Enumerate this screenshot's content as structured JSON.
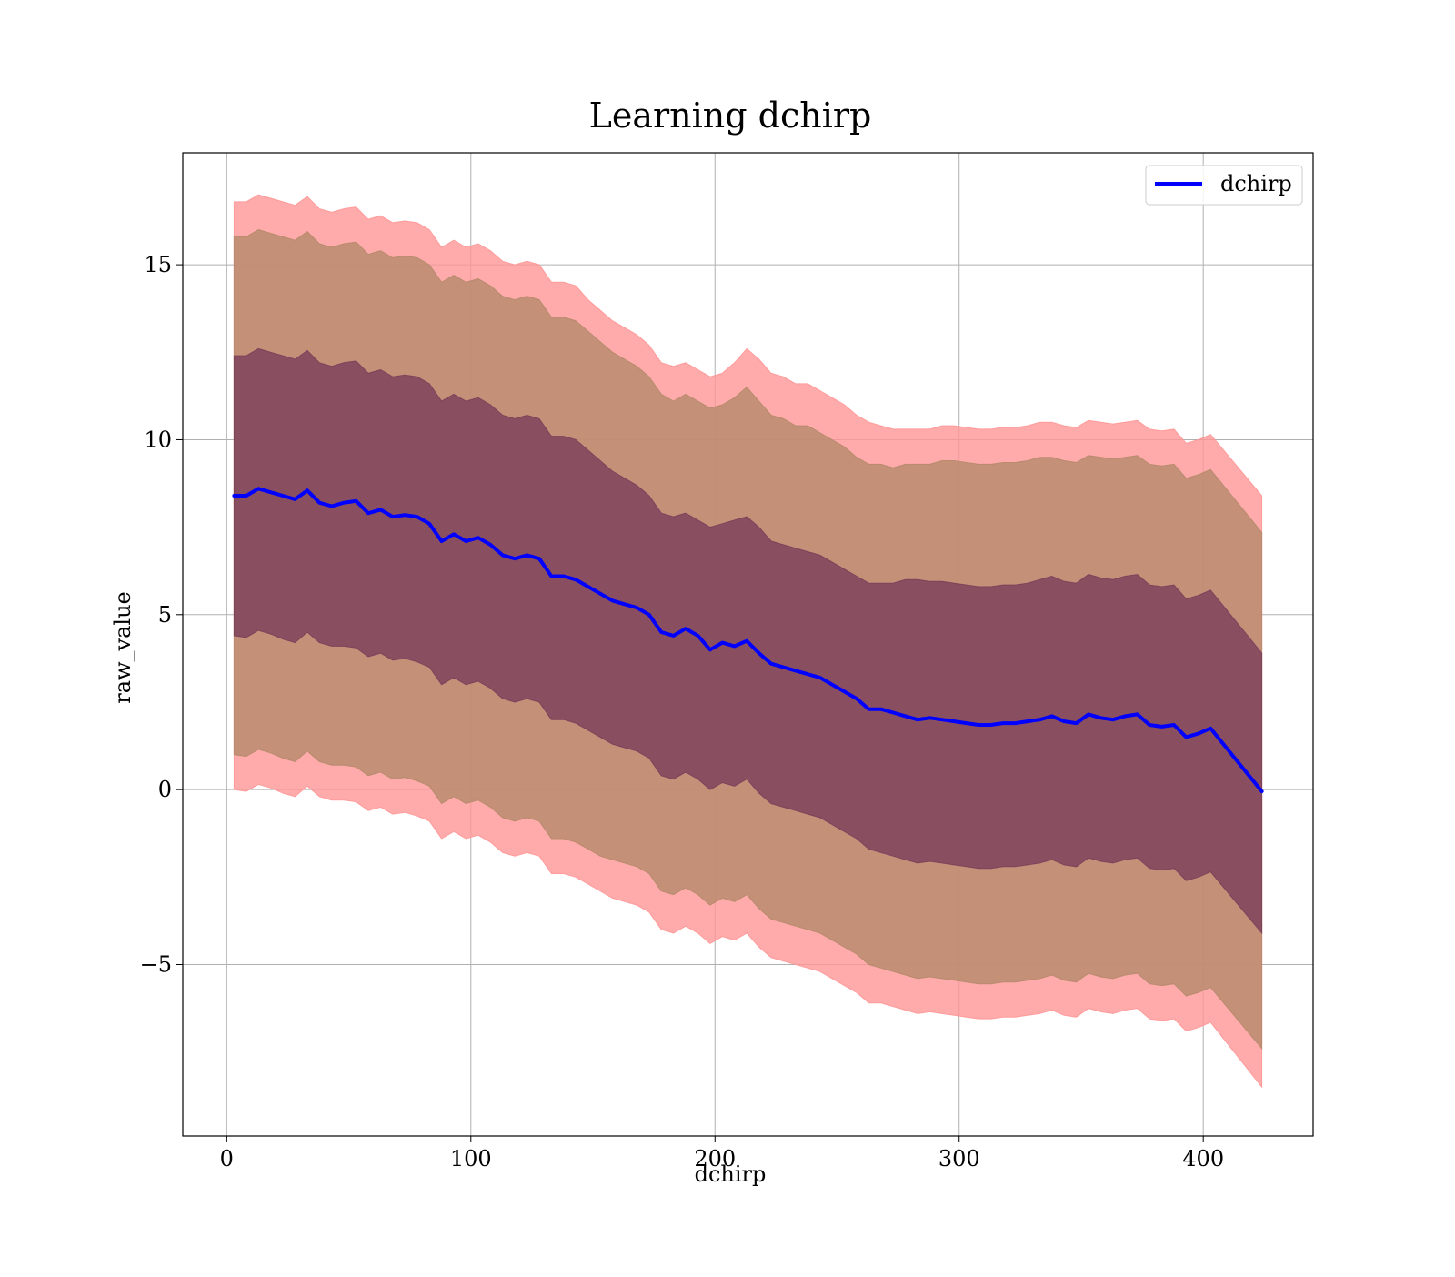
{
  "chart_data": {
    "type": "line",
    "title": "Learning dchirp",
    "xlabel": "dchirp",
    "ylabel": "raw_value",
    "xlim": [
      -18,
      445
    ],
    "ylim": [
      -9.9,
      18.2
    ],
    "xticks": [
      0,
      100,
      200,
      300,
      400
    ],
    "yticks": [
      -5,
      0,
      5,
      10,
      15
    ],
    "grid": true,
    "legend_position": "top-right",
    "colors": {
      "mean_line": "#0000ff",
      "band_outer": "#ff9696",
      "band_middle": "#b58a6a",
      "band_inner": "#7a3f5a",
      "grid": "#b0b0b0"
    },
    "series": [
      {
        "name": "dchirp",
        "style": "line",
        "x": [
          3,
          8,
          13,
          18,
          23,
          28,
          33,
          38,
          43,
          48,
          53,
          58,
          63,
          68,
          73,
          78,
          83,
          88,
          93,
          98,
          103,
          108,
          113,
          118,
          123,
          128,
          133,
          138,
          143,
          148,
          153,
          158,
          163,
          168,
          173,
          178,
          183,
          188,
          193,
          198,
          203,
          208,
          213,
          218,
          223,
          228,
          233,
          238,
          243,
          248,
          253,
          258,
          263,
          268,
          273,
          278,
          283,
          288,
          293,
          298,
          303,
          308,
          313,
          318,
          323,
          328,
          333,
          338,
          343,
          348,
          353,
          358,
          363,
          368,
          373,
          378,
          383,
          388,
          393,
          398,
          403,
          424
        ],
        "y": [
          8.4,
          8.4,
          8.6,
          8.5,
          8.4,
          8.3,
          8.55,
          8.2,
          8.1,
          8.2,
          8.25,
          7.9,
          8.0,
          7.8,
          7.85,
          7.8,
          7.6,
          7.1,
          7.3,
          7.1,
          7.2,
          7.0,
          6.7,
          6.6,
          6.7,
          6.6,
          6.1,
          6.1,
          6.0,
          5.8,
          5.6,
          5.4,
          5.3,
          5.2,
          5.0,
          4.5,
          4.4,
          4.6,
          4.4,
          4.0,
          4.2,
          4.1,
          4.25,
          3.9,
          3.6,
          3.5,
          3.4,
          3.3,
          3.2,
          3.0,
          2.8,
          2.6,
          2.3,
          2.3,
          2.2,
          2.1,
          2.0,
          2.05,
          2.0,
          1.95,
          1.9,
          1.85,
          1.85,
          1.9,
          1.9,
          1.95,
          2.0,
          2.1,
          1.95,
          1.9,
          2.15,
          2.05,
          2.0,
          2.1,
          2.15,
          1.85,
          1.8,
          1.85,
          1.5,
          1.6,
          1.75,
          -0.05
        ]
      },
      {
        "name": "",
        "style": "band",
        "fill": "band_outer",
        "x": [
          3,
          8,
          13,
          18,
          23,
          28,
          33,
          38,
          43,
          48,
          53,
          58,
          63,
          68,
          73,
          78,
          83,
          88,
          93,
          98,
          103,
          108,
          113,
          118,
          123,
          128,
          133,
          138,
          143,
          148,
          153,
          158,
          163,
          168,
          173,
          178,
          183,
          188,
          193,
          198,
          203,
          208,
          213,
          218,
          223,
          228,
          233,
          238,
          243,
          248,
          253,
          258,
          263,
          268,
          273,
          278,
          283,
          288,
          293,
          298,
          303,
          308,
          313,
          318,
          323,
          328,
          333,
          338,
          343,
          348,
          353,
          358,
          363,
          368,
          373,
          378,
          383,
          388,
          393,
          398,
          403,
          424
        ],
        "upper": [
          16.8,
          16.8,
          17.0,
          16.9,
          16.8,
          16.7,
          16.95,
          16.6,
          16.5,
          16.6,
          16.65,
          16.3,
          16.4,
          16.2,
          16.25,
          16.2,
          16.0,
          15.5,
          15.7,
          15.5,
          15.6,
          15.4,
          15.1,
          15.0,
          15.1,
          15.0,
          14.5,
          14.5,
          14.4,
          14.0,
          13.7,
          13.4,
          13.2,
          13.0,
          12.7,
          12.2,
          12.1,
          12.2,
          12.0,
          11.8,
          11.9,
          12.2,
          12.6,
          12.3,
          11.9,
          11.8,
          11.6,
          11.6,
          11.4,
          11.2,
          11.0,
          10.7,
          10.5,
          10.4,
          10.3,
          10.3,
          10.3,
          10.3,
          10.4,
          10.4,
          10.35,
          10.3,
          10.3,
          10.35,
          10.35,
          10.4,
          10.5,
          10.5,
          10.4,
          10.35,
          10.55,
          10.5,
          10.45,
          10.5,
          10.55,
          10.3,
          10.25,
          10.3,
          9.9,
          10.0,
          10.15,
          8.4
        ],
        "lower": [
          0.0,
          -0.05,
          0.15,
          0.05,
          -0.1,
          -0.2,
          0.1,
          -0.2,
          -0.3,
          -0.3,
          -0.35,
          -0.6,
          -0.5,
          -0.7,
          -0.65,
          -0.75,
          -0.9,
          -1.4,
          -1.2,
          -1.4,
          -1.3,
          -1.5,
          -1.8,
          -1.9,
          -1.8,
          -1.9,
          -2.4,
          -2.4,
          -2.5,
          -2.7,
          -2.9,
          -3.1,
          -3.2,
          -3.3,
          -3.5,
          -4.0,
          -4.1,
          -3.9,
          -4.1,
          -4.4,
          -4.2,
          -4.3,
          -4.1,
          -4.5,
          -4.8,
          -4.9,
          -5.0,
          -5.1,
          -5.2,
          -5.4,
          -5.6,
          -5.8,
          -6.1,
          -6.1,
          -6.2,
          -6.3,
          -6.4,
          -6.35,
          -6.4,
          -6.45,
          -6.5,
          -6.55,
          -6.55,
          -6.5,
          -6.5,
          -6.45,
          -6.4,
          -6.3,
          -6.45,
          -6.5,
          -6.25,
          -6.35,
          -6.4,
          -6.3,
          -6.25,
          -6.55,
          -6.6,
          -6.55,
          -6.9,
          -6.8,
          -6.65,
          -8.5
        ]
      },
      {
        "name": "",
        "style": "band",
        "fill": "band_middle",
        "x": [
          3,
          8,
          13,
          18,
          23,
          28,
          33,
          38,
          43,
          48,
          53,
          58,
          63,
          68,
          73,
          78,
          83,
          88,
          93,
          98,
          103,
          108,
          113,
          118,
          123,
          128,
          133,
          138,
          143,
          148,
          153,
          158,
          163,
          168,
          173,
          178,
          183,
          188,
          193,
          198,
          203,
          208,
          213,
          218,
          223,
          228,
          233,
          238,
          243,
          248,
          253,
          258,
          263,
          268,
          273,
          278,
          283,
          288,
          293,
          298,
          303,
          308,
          313,
          318,
          323,
          328,
          333,
          338,
          343,
          348,
          353,
          358,
          363,
          368,
          373,
          378,
          383,
          388,
          393,
          398,
          403,
          424
        ],
        "upper": [
          15.8,
          15.8,
          16.0,
          15.9,
          15.8,
          15.7,
          15.95,
          15.6,
          15.5,
          15.6,
          15.65,
          15.3,
          15.4,
          15.2,
          15.25,
          15.2,
          15.0,
          14.5,
          14.7,
          14.5,
          14.6,
          14.4,
          14.1,
          14.0,
          14.1,
          14.0,
          13.5,
          13.5,
          13.4,
          13.1,
          12.8,
          12.5,
          12.3,
          12.1,
          11.8,
          11.3,
          11.1,
          11.3,
          11.1,
          10.9,
          11.0,
          11.2,
          11.5,
          11.1,
          10.7,
          10.6,
          10.4,
          10.4,
          10.2,
          10.0,
          9.8,
          9.5,
          9.3,
          9.3,
          9.2,
          9.3,
          9.3,
          9.3,
          9.4,
          9.4,
          9.35,
          9.3,
          9.3,
          9.35,
          9.35,
          9.4,
          9.5,
          9.5,
          9.4,
          9.35,
          9.55,
          9.5,
          9.45,
          9.5,
          9.55,
          9.3,
          9.25,
          9.3,
          8.9,
          9.0,
          9.15,
          7.35
        ],
        "lower": [
          1.0,
          0.95,
          1.15,
          1.05,
          0.9,
          0.8,
          1.1,
          0.8,
          0.7,
          0.7,
          0.65,
          0.4,
          0.5,
          0.3,
          0.35,
          0.25,
          0.1,
          -0.4,
          -0.2,
          -0.4,
          -0.3,
          -0.5,
          -0.8,
          -0.9,
          -0.8,
          -0.9,
          -1.4,
          -1.4,
          -1.5,
          -1.7,
          -1.9,
          -2.0,
          -2.1,
          -2.2,
          -2.4,
          -2.9,
          -3.0,
          -2.8,
          -3.0,
          -3.3,
          -3.1,
          -3.2,
          -3.0,
          -3.4,
          -3.7,
          -3.8,
          -3.9,
          -4.0,
          -4.1,
          -4.3,
          -4.5,
          -4.7,
          -5.0,
          -5.1,
          -5.2,
          -5.3,
          -5.4,
          -5.35,
          -5.4,
          -5.45,
          -5.5,
          -5.55,
          -5.55,
          -5.5,
          -5.5,
          -5.45,
          -5.4,
          -5.3,
          -5.45,
          -5.5,
          -5.25,
          -5.35,
          -5.4,
          -5.3,
          -5.25,
          -5.55,
          -5.6,
          -5.55,
          -5.9,
          -5.8,
          -5.65,
          -7.4
        ]
      },
      {
        "name": "",
        "style": "band",
        "fill": "band_inner",
        "x": [
          3,
          8,
          13,
          18,
          23,
          28,
          33,
          38,
          43,
          48,
          53,
          58,
          63,
          68,
          73,
          78,
          83,
          88,
          93,
          98,
          103,
          108,
          113,
          118,
          123,
          128,
          133,
          138,
          143,
          148,
          153,
          158,
          163,
          168,
          173,
          178,
          183,
          188,
          193,
          198,
          203,
          208,
          213,
          218,
          223,
          228,
          233,
          238,
          243,
          248,
          253,
          258,
          263,
          268,
          273,
          278,
          283,
          288,
          293,
          298,
          303,
          308,
          313,
          318,
          323,
          328,
          333,
          338,
          343,
          348,
          353,
          358,
          363,
          368,
          373,
          378,
          383,
          388,
          393,
          398,
          403,
          424
        ],
        "upper": [
          12.4,
          12.4,
          12.6,
          12.5,
          12.4,
          12.3,
          12.55,
          12.2,
          12.1,
          12.2,
          12.25,
          11.9,
          12.0,
          11.8,
          11.85,
          11.8,
          11.6,
          11.1,
          11.3,
          11.1,
          11.2,
          11.0,
          10.7,
          10.6,
          10.7,
          10.6,
          10.1,
          10.1,
          10.0,
          9.7,
          9.4,
          9.1,
          8.9,
          8.7,
          8.4,
          7.9,
          7.8,
          7.9,
          7.7,
          7.5,
          7.6,
          7.7,
          7.8,
          7.5,
          7.1,
          7.0,
          6.9,
          6.8,
          6.7,
          6.5,
          6.3,
          6.1,
          5.9,
          5.9,
          5.9,
          6.0,
          6.0,
          5.95,
          5.95,
          5.9,
          5.85,
          5.8,
          5.8,
          5.85,
          5.85,
          5.9,
          6.0,
          6.1,
          5.95,
          5.9,
          6.15,
          6.05,
          6.0,
          6.1,
          6.15,
          5.85,
          5.8,
          5.85,
          5.45,
          5.55,
          5.7,
          3.9
        ],
        "lower": [
          4.4,
          4.35,
          4.55,
          4.45,
          4.3,
          4.2,
          4.5,
          4.2,
          4.1,
          4.1,
          4.05,
          3.8,
          3.9,
          3.7,
          3.75,
          3.65,
          3.5,
          3.0,
          3.2,
          3.0,
          3.1,
          2.9,
          2.6,
          2.5,
          2.6,
          2.5,
          2.0,
          2.0,
          1.9,
          1.7,
          1.5,
          1.3,
          1.2,
          1.1,
          0.9,
          0.4,
          0.3,
          0.5,
          0.3,
          0.0,
          0.2,
          0.1,
          0.3,
          -0.1,
          -0.4,
          -0.5,
          -0.6,
          -0.7,
          -0.8,
          -1.0,
          -1.2,
          -1.4,
          -1.7,
          -1.8,
          -1.9,
          -2.0,
          -2.1,
          -2.05,
          -2.1,
          -2.15,
          -2.2,
          -2.25,
          -2.25,
          -2.2,
          -2.2,
          -2.15,
          -2.1,
          -2.0,
          -2.15,
          -2.2,
          -1.95,
          -2.05,
          -2.1,
          -2.0,
          -1.95,
          -2.25,
          -2.3,
          -2.25,
          -2.6,
          -2.5,
          -2.35,
          -4.1
        ]
      }
    ]
  }
}
